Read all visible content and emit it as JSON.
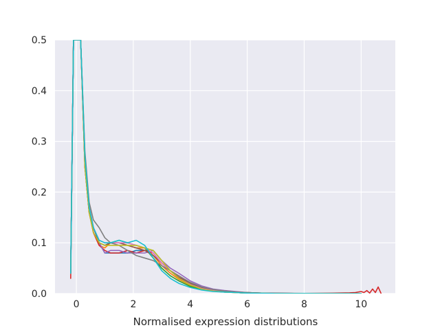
{
  "chart_data": {
    "type": "line",
    "title": "",
    "xlabel": "Normalised expression distributions",
    "ylabel": "",
    "xlim": [
      -0.75,
      11.2
    ],
    "ylim": [
      0,
      0.5
    ],
    "grid": true,
    "background": "#eaeaf2",
    "x_ticks": [
      0,
      2,
      4,
      6,
      8,
      10
    ],
    "x_tick_labels": [
      "0",
      "2",
      "4",
      "6",
      "8",
      "10"
    ],
    "y_ticks": [
      0.0,
      0.1,
      0.2,
      0.3,
      0.4,
      0.5
    ],
    "y_tick_labels": [
      "0.0",
      "0.1",
      "0.2",
      "0.3",
      "0.4",
      "0.5"
    ],
    "series": [
      {
        "color": "#1f77b4",
        "x": [
          -0.2,
          -0.1,
          0.0,
          0.15,
          0.3,
          0.45,
          0.6,
          0.8,
          1.0,
          1.2,
          1.5,
          1.8,
          2.1,
          2.4,
          2.7,
          3.0,
          3.3,
          3.6,
          4.0,
          4.4,
          4.8,
          5.2,
          5.6,
          6.0,
          6.5,
          7.0,
          8.0,
          9.0,
          10.0
        ],
        "y": [
          0.04,
          0.5,
          0.5,
          0.5,
          0.26,
          0.17,
          0.13,
          0.1,
          0.08,
          0.08,
          0.08,
          0.08,
          0.085,
          0.085,
          0.08,
          0.06,
          0.045,
          0.03,
          0.018,
          0.01,
          0.006,
          0.004,
          0.002,
          0.001,
          0.0005,
          0.0003,
          0.0001,
          0.0,
          0.0
        ]
      },
      {
        "color": "#ff7f0e",
        "x": [
          -0.2,
          -0.1,
          0.0,
          0.15,
          0.3,
          0.45,
          0.6,
          0.8,
          1.0,
          1.2,
          1.5,
          1.8,
          2.1,
          2.4,
          2.7,
          3.0,
          3.3,
          3.6,
          4.0,
          4.4,
          4.8,
          5.2,
          5.6,
          6.0,
          6.5,
          7.0,
          8.0,
          9.0,
          10.0
        ],
        "y": [
          0.04,
          0.5,
          0.5,
          0.5,
          0.25,
          0.16,
          0.12,
          0.095,
          0.09,
          0.1,
          0.1,
          0.095,
          0.09,
          0.09,
          0.075,
          0.055,
          0.04,
          0.028,
          0.016,
          0.009,
          0.005,
          0.003,
          0.002,
          0.001,
          0.0005,
          0.0002,
          0.0001,
          0.0,
          0.0
        ]
      },
      {
        "color": "#2ca02c",
        "x": [
          -0.2,
          -0.1,
          0.0,
          0.15,
          0.3,
          0.45,
          0.6,
          0.8,
          1.0,
          1.2,
          1.5,
          1.8,
          2.1,
          2.4,
          2.7,
          3.0,
          3.3,
          3.6,
          4.0,
          4.4,
          4.8,
          5.2,
          5.6,
          6.0,
          6.5,
          7.0,
          8.0,
          9.0,
          10.0
        ],
        "y": [
          0.04,
          0.5,
          0.5,
          0.5,
          0.27,
          0.17,
          0.13,
          0.1,
          0.095,
          0.1,
          0.105,
          0.1,
          0.095,
          0.09,
          0.07,
          0.05,
          0.035,
          0.025,
          0.014,
          0.008,
          0.005,
          0.003,
          0.002,
          0.001,
          0.0005,
          0.0002,
          0.0001,
          0.0,
          0.0
        ]
      },
      {
        "color": "#d62728",
        "x": [
          -0.2,
          -0.1,
          0.0,
          0.15,
          0.3,
          0.45,
          0.6,
          0.8,
          1.0,
          1.2,
          1.5,
          1.8,
          2.1,
          2.4,
          2.7,
          3.0,
          3.3,
          3.6,
          4.0,
          4.4,
          4.8,
          5.2,
          5.6,
          6.0,
          6.5,
          7.0,
          8.0,
          9.0,
          9.6,
          9.8,
          10.0,
          10.1,
          10.2,
          10.3,
          10.4,
          10.5,
          10.6,
          10.7
        ],
        "y": [
          0.03,
          0.5,
          0.5,
          0.5,
          0.25,
          0.16,
          0.12,
          0.095,
          0.085,
          0.08,
          0.08,
          0.085,
          0.08,
          0.085,
          0.08,
          0.06,
          0.045,
          0.035,
          0.02,
          0.012,
          0.007,
          0.005,
          0.003,
          0.002,
          0.001,
          0.0005,
          0.0003,
          0.0008,
          0.0015,
          0.002,
          0.004,
          0.002,
          0.006,
          0.001,
          0.009,
          0.002,
          0.013,
          0.0
        ]
      },
      {
        "color": "#9467bd",
        "x": [
          -0.2,
          -0.1,
          0.0,
          0.15,
          0.3,
          0.45,
          0.6,
          0.8,
          1.0,
          1.2,
          1.5,
          1.8,
          2.1,
          2.4,
          2.7,
          3.0,
          3.3,
          3.6,
          4.0,
          4.4,
          4.8,
          5.2,
          5.6,
          6.0,
          6.5,
          7.0,
          8.0,
          9.0,
          10.0
        ],
        "y": [
          0.04,
          0.5,
          0.5,
          0.5,
          0.26,
          0.17,
          0.13,
          0.1,
          0.08,
          0.085,
          0.085,
          0.08,
          0.08,
          0.08,
          0.085,
          0.065,
          0.05,
          0.04,
          0.025,
          0.015,
          0.009,
          0.006,
          0.004,
          0.002,
          0.001,
          0.0005,
          0.0002,
          0.0,
          0.0
        ]
      },
      {
        "color": "#8c564b",
        "x": [
          -0.2,
          -0.1,
          0.0,
          0.15,
          0.3,
          0.45,
          0.6,
          0.8,
          1.0,
          1.2,
          1.5,
          1.8,
          2.1,
          2.4,
          2.7,
          3.0,
          3.3,
          3.6,
          4.0,
          4.4,
          4.8,
          5.2,
          5.6,
          6.0,
          6.5,
          7.0,
          8.0,
          9.0,
          10.0
        ],
        "y": [
          0.04,
          0.5,
          0.5,
          0.5,
          0.25,
          0.16,
          0.13,
          0.1,
          0.095,
          0.1,
          0.1,
          0.095,
          0.09,
          0.085,
          0.075,
          0.06,
          0.045,
          0.032,
          0.02,
          0.012,
          0.007,
          0.005,
          0.003,
          0.002,
          0.001,
          0.0005,
          0.0001,
          0.0,
          0.0
        ]
      },
      {
        "color": "#e377c2",
        "x": [
          -0.2,
          -0.1,
          0.0,
          0.15,
          0.3,
          0.45,
          0.6,
          0.8,
          1.0,
          1.2,
          1.5,
          1.8,
          2.1,
          2.4,
          2.7,
          3.0,
          3.3,
          3.6,
          4.0,
          4.4,
          4.8,
          5.2,
          5.6,
          6.0,
          6.5,
          7.0,
          8.0,
          9.0,
          10.0
        ],
        "y": [
          0.04,
          0.5,
          0.5,
          0.5,
          0.26,
          0.17,
          0.13,
          0.105,
          0.1,
          0.1,
          0.1,
          0.1,
          0.095,
          0.09,
          0.08,
          0.06,
          0.045,
          0.03,
          0.018,
          0.01,
          0.006,
          0.004,
          0.002,
          0.001,
          0.0005,
          0.0002,
          0.0001,
          0.0,
          0.0
        ]
      },
      {
        "color": "#7f7f7f",
        "x": [
          -0.2,
          -0.1,
          0.0,
          0.15,
          0.3,
          0.45,
          0.6,
          0.8,
          1.0,
          1.2,
          1.5,
          1.8,
          2.1,
          2.4,
          2.7,
          3.0,
          3.3,
          3.6,
          4.0,
          4.4,
          4.8,
          5.2,
          5.6,
          6.0,
          6.5,
          7.0,
          8.0,
          9.0,
          10.0
        ],
        "y": [
          0.04,
          0.5,
          0.5,
          0.5,
          0.28,
          0.18,
          0.145,
          0.13,
          0.11,
          0.1,
          0.095,
          0.085,
          0.075,
          0.07,
          0.065,
          0.055,
          0.045,
          0.035,
          0.022,
          0.013,
          0.008,
          0.005,
          0.003,
          0.002,
          0.001,
          0.0005,
          0.0001,
          0.0,
          0.0
        ]
      },
      {
        "color": "#bcbd22",
        "x": [
          -0.2,
          -0.1,
          0.0,
          0.15,
          0.3,
          0.45,
          0.6,
          0.8,
          1.0,
          1.2,
          1.5,
          1.8,
          2.1,
          2.4,
          2.7,
          3.0,
          3.3,
          3.6,
          4.0,
          4.4,
          4.8,
          5.2,
          5.6,
          6.0,
          6.5,
          7.0,
          8.0,
          9.0,
          10.0
        ],
        "y": [
          0.04,
          0.5,
          0.5,
          0.5,
          0.25,
          0.16,
          0.12,
          0.1,
          0.095,
          0.095,
          0.095,
          0.095,
          0.095,
          0.09,
          0.085,
          0.065,
          0.045,
          0.03,
          0.017,
          0.009,
          0.005,
          0.003,
          0.002,
          0.001,
          0.0005,
          0.0002,
          0.0001,
          0.0,
          0.0
        ]
      },
      {
        "color": "#17becf",
        "x": [
          -0.2,
          -0.1,
          0.0,
          0.15,
          0.3,
          0.45,
          0.6,
          0.8,
          1.0,
          1.2,
          1.5,
          1.8,
          2.1,
          2.4,
          2.7,
          3.0,
          3.3,
          3.6,
          4.0,
          4.4,
          4.8,
          5.2,
          5.6,
          6.0,
          6.5,
          7.0,
          8.0,
          9.0,
          10.0
        ],
        "y": [
          0.04,
          0.5,
          0.5,
          0.5,
          0.27,
          0.17,
          0.13,
          0.105,
          0.1,
          0.1,
          0.105,
          0.1,
          0.105,
          0.095,
          0.07,
          0.045,
          0.03,
          0.02,
          0.012,
          0.007,
          0.004,
          0.003,
          0.002,
          0.001,
          0.0005,
          0.0002,
          0.0001,
          0.0,
          0.0
        ]
      }
    ]
  }
}
